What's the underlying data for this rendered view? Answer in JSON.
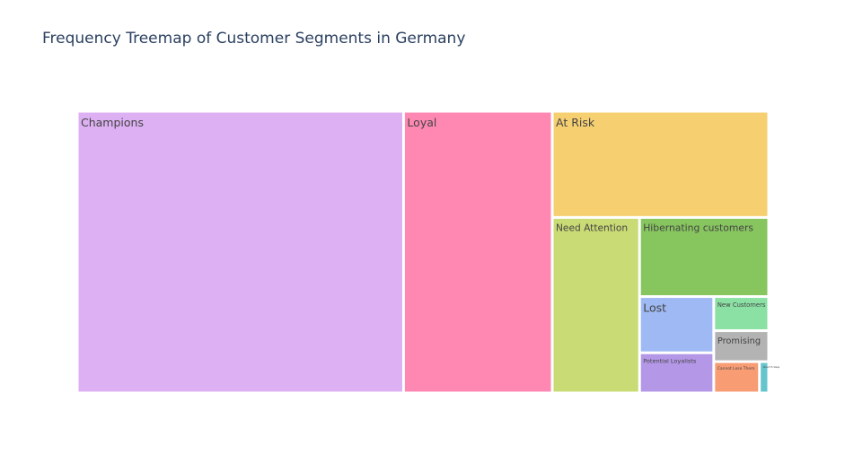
{
  "chart_data": {
    "type": "treemap",
    "title": "Frequency Treemap of Customer Segments in Germany",
    "tiles": [
      {
        "label": "Champions",
        "value": 5400,
        "color": "#dcb0f2"
      },
      {
        "label": "Loyal",
        "value": 2460,
        "color": "#fe88b1"
      },
      {
        "label": "At Risk",
        "value": 1350,
        "color": "#f6cf71"
      },
      {
        "label": "Need Attention",
        "value": 900,
        "color": "#c9db74"
      },
      {
        "label": "Hibernating customers",
        "value": 600,
        "color": "#87c55f"
      },
      {
        "label": "Lost",
        "value": 245,
        "color": "#9eb9f3"
      },
      {
        "label": "Potential Loyalists",
        "value": 175,
        "color": "#b497e7"
      },
      {
        "label": "New Customers",
        "value": 110,
        "color": "#8be0a4"
      },
      {
        "label": "Promising",
        "value": 100,
        "color": "#b3b3b3"
      },
      {
        "label": "Cannot Lose Them",
        "value": 84,
        "color": "#f89c74"
      },
      {
        "label": "About To Sleep",
        "value": 17,
        "color": "#66c5cc"
      }
    ]
  }
}
